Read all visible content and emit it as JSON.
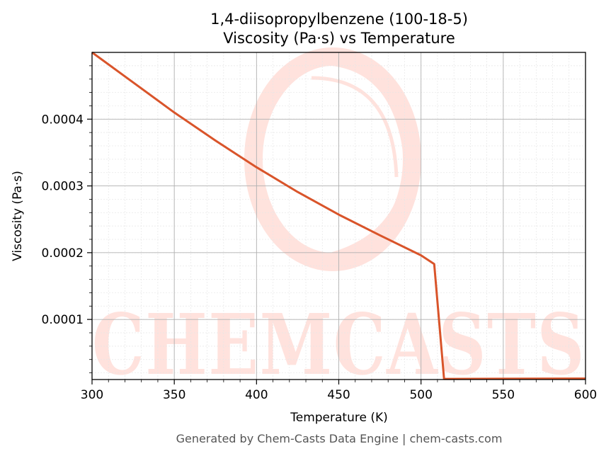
{
  "chart_data": {
    "type": "line",
    "title_line1": "1,4-diisopropylbenzene (100-18-5)",
    "title_line2": "Viscosity (Pa·s) vs Temperature",
    "xlabel": "Temperature (K)",
    "ylabel": "Viscosity (Pa·s)",
    "xlim": [
      300,
      600
    ],
    "ylim": [
      1e-05,
      0.0005
    ],
    "x_ticks": [
      300,
      350,
      400,
      450,
      500,
      550,
      600
    ],
    "x_tick_labels": [
      "300",
      "350",
      "400",
      "450",
      "500",
      "550",
      "600"
    ],
    "y_ticks": [
      0.0001,
      0.0002,
      0.0003,
      0.0004
    ],
    "y_tick_labels": [
      "0.0001",
      "0.0002",
      "0.0003",
      "0.0004"
    ],
    "grid": true,
    "line_color": "#d9542a",
    "series": [
      {
        "x": [
          300,
          325,
          350,
          375,
          400,
          425,
          450,
          475,
          500,
          508,
          514,
          550,
          600
        ],
        "values": [
          0.0005,
          0.000455,
          0.00041,
          0.000368,
          0.000328,
          0.000291,
          0.000257,
          0.000226,
          0.000196,
          0.000183,
          1.1e-05,
          1.12e-05,
          1.15e-05
        ]
      }
    ]
  },
  "watermark": {
    "text": "CHEMCASTS",
    "color": "#ffd9d2"
  },
  "footer": "Generated by Chem-Casts Data Engine | chem-casts.com"
}
